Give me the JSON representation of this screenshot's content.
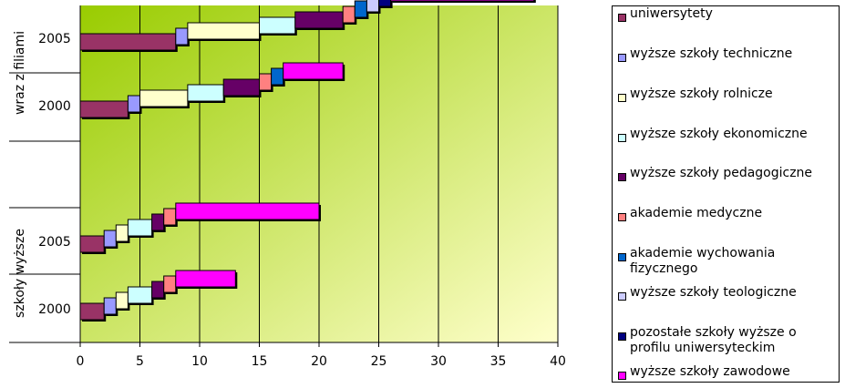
{
  "chart_data": {
    "type": "bar",
    "orientation": "horizontal-stacked-waterfall",
    "xlim": [
      0,
      40
    ],
    "x_ticks": [
      "0",
      "5",
      "10",
      "15",
      "20",
      "25",
      "30",
      "35",
      "40"
    ],
    "groups": [
      {
        "label": "wraz z filiami",
        "rows": [
          "2005",
          "2000"
        ]
      },
      {
        "label": "szkoły wyższe",
        "rows": [
          "2005",
          "2000"
        ]
      }
    ],
    "grid": "vertical",
    "legend_position": "right",
    "series": [
      {
        "name": "uniwersytety",
        "color": "#993366",
        "values": {
          "wraz z filiami 2005": 8,
          "wraz z filiami 2000": 4,
          "szkoły wyższe 2005": 2,
          "szkoły wyższe 2000": 2
        }
      },
      {
        "name": "wyższe szkoły techniczne",
        "color": "#9999ff",
        "values": {
          "wraz z filiami 2005": 1,
          "wraz z filiami 2000": 1,
          "szkoły wyższe 2005": 1,
          "szkoły wyższe 2000": 1
        }
      },
      {
        "name": "wyższe szkoły rolnicze",
        "color": "#ffffcc",
        "values": {
          "wraz z filiami 2005": 6,
          "wraz z filiami 2000": 4,
          "szkoły wyższe 2005": 1,
          "szkoły wyższe 2000": 1
        }
      },
      {
        "name": "wyższe szkoły ekonomiczne",
        "color": "#ccffff",
        "values": {
          "wraz z filiami 2005": 3,
          "wraz z filiami 2000": 3,
          "szkoły wyższe 2005": 2,
          "szkoły wyższe 2000": 2
        }
      },
      {
        "name": "wyższe szkoły pedagogiczne",
        "color": "#660066",
        "values": {
          "wraz z filiami 2005": 4,
          "wraz z filiami 2000": 3,
          "szkoły wyższe 2005": 1,
          "szkoły wyższe 2000": 1
        }
      },
      {
        "name": "akademie medyczne",
        "color": "#ff8080",
        "values": {
          "wraz z filiami 2005": 1,
          "wraz z filiami 2000": 1,
          "szkoły wyższe 2005": 1,
          "szkoły wyższe 2000": 1
        }
      },
      {
        "name": "akademie wychowania fizycznego",
        "color": "#0066cc",
        "values": {
          "wraz z filiami 2005": 1,
          "wraz z filiami 2000": 1,
          "szkoły wyższe 2005": 0,
          "szkoły wyższe 2000": 0
        }
      },
      {
        "name": "wyższe szkoły teologiczne",
        "color": "#ccccff",
        "values": {
          "wraz z filiami 2005": 1,
          "wraz z filiami 2000": 0,
          "szkoły wyższe 2005": 0,
          "szkoły wyższe 2000": 0
        }
      },
      {
        "name": "pozostałe szkoły wyższe o profilu uniwersyteckim",
        "color": "#000080",
        "values": {
          "wraz z filiami 2005": 1,
          "wraz z filiami 2000": 0,
          "szkoły wyższe 2005": 0,
          "szkoły wyższe 2000": 0
        }
      },
      {
        "name": "wyższe szkoły zawodowe",
        "color": "#ff00ff",
        "values": {
          "wraz z filiami 2005": 12,
          "wraz z filiami 2000": 5,
          "szkoły wyższe 2005": 12,
          "szkoły wyższe 2000": 5
        }
      }
    ]
  }
}
